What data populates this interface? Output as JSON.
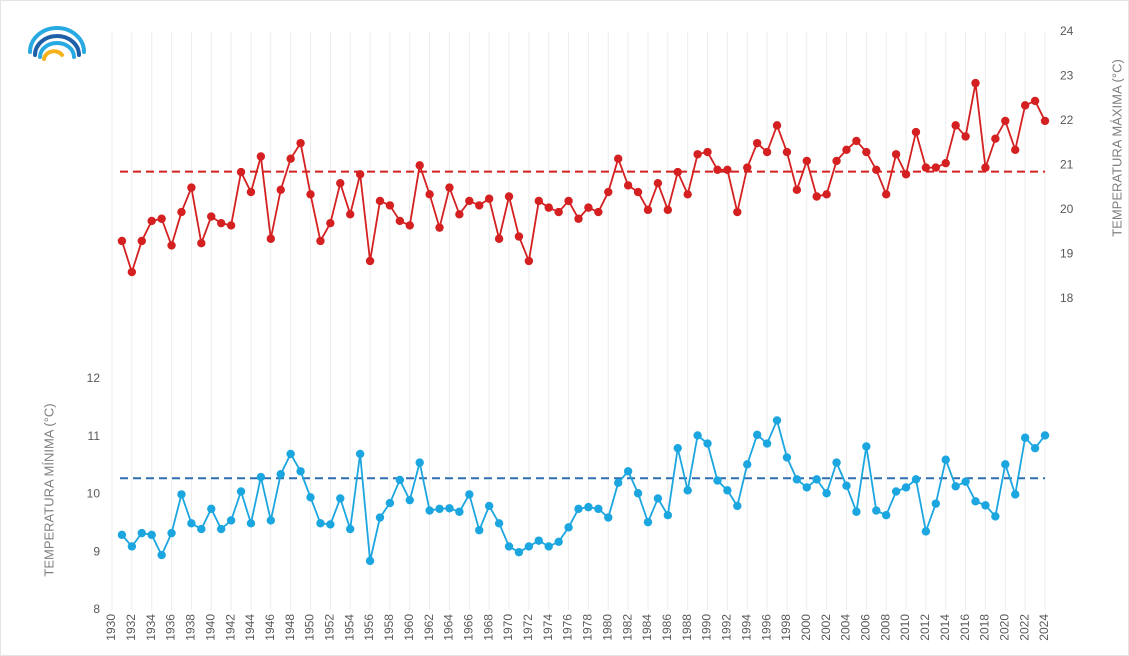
{
  "chart_data": {
    "type": "line",
    "x": [
      1931,
      1932,
      1933,
      1934,
      1935,
      1936,
      1937,
      1938,
      1939,
      1940,
      1941,
      1942,
      1943,
      1944,
      1945,
      1946,
      1947,
      1948,
      1949,
      1950,
      1951,
      1952,
      1953,
      1954,
      1955,
      1956,
      1957,
      1958,
      1959,
      1960,
      1961,
      1962,
      1963,
      1964,
      1965,
      1966,
      1967,
      1968,
      1969,
      1970,
      1971,
      1972,
      1973,
      1974,
      1975,
      1976,
      1977,
      1978,
      1979,
      1980,
      1981,
      1982,
      1983,
      1984,
      1985,
      1986,
      1987,
      1988,
      1989,
      1990,
      1991,
      1992,
      1993,
      1994,
      1995,
      1996,
      1997,
      1998,
      1999,
      2000,
      2001,
      2002,
      2003,
      2004,
      2005,
      2006,
      2007,
      2008,
      2009,
      2010,
      2011,
      2012,
      2013,
      2014,
      2015,
      2016,
      2017,
      2018,
      2019,
      2020,
      2021,
      2022,
      2023,
      2024
    ],
    "series": [
      {
        "color": "#d42020",
        "axis": "y2",
        "values": [
          19.3,
          18.6,
          19.3,
          19.75,
          19.8,
          19.2,
          19.95,
          20.5,
          19.25,
          19.85,
          19.7,
          19.65,
          20.85,
          20.4,
          21.2,
          19.35,
          20.45,
          21.15,
          21.5,
          20.35,
          19.3,
          19.7,
          20.6,
          19.9,
          20.8,
          18.85,
          20.2,
          20.1,
          19.75,
          19.65,
          21.0,
          20.35,
          19.6,
          20.5,
          19.9,
          20.2,
          20.1,
          20.25,
          19.35,
          20.3,
          19.4,
          18.85,
          20.2,
          20.05,
          19.95,
          20.2,
          19.8,
          20.05,
          19.95,
          20.4,
          21.15,
          20.55,
          20.4,
          20.0,
          20.6,
          20.0,
          20.85,
          20.35,
          21.25,
          21.3,
          20.9,
          20.9,
          19.95,
          20.95,
          21.5,
          21.3,
          21.9,
          21.3,
          20.45,
          21.1,
          20.3,
          20.35,
          21.1,
          21.35,
          21.55,
          21.3,
          20.9,
          20.35,
          21.25,
          20.8,
          21.75,
          20.95,
          20.95,
          21.05,
          21.9,
          21.65,
          22.85,
          20.95,
          21.6,
          22.0,
          21.35,
          22.35,
          22.45,
          22.0
        ]
      },
      {
        "color": "#1ca6e0",
        "values": [
          9.3,
          9.1,
          9.33,
          9.3,
          8.95,
          9.33,
          10.0,
          9.5,
          9.4,
          9.75,
          9.4,
          9.55,
          10.05,
          9.5,
          10.3,
          9.55,
          10.35,
          10.7,
          10.4,
          9.95,
          9.5,
          9.48,
          9.93,
          9.4,
          10.7,
          8.85,
          9.6,
          9.85,
          10.25,
          9.9,
          10.55,
          9.72,
          9.75,
          9.76,
          9.7,
          10.0,
          9.38,
          9.8,
          9.5,
          9.1,
          9.0,
          9.1,
          9.2,
          9.1,
          9.18,
          9.43,
          9.75,
          9.78,
          9.75,
          9.6,
          10.2,
          10.4,
          10.02,
          9.52,
          9.93,
          9.64,
          10.8,
          10.07,
          11.02,
          10.88,
          10.24,
          10.07,
          9.8,
          10.52,
          11.03,
          10.88,
          11.28,
          10.64,
          10.26,
          10.12,
          10.26,
          10.02,
          10.55,
          10.15,
          9.7,
          10.83,
          9.72,
          9.64,
          10.05,
          10.12,
          10.26,
          9.36,
          9.84,
          10.6,
          10.14,
          10.22,
          9.88,
          9.81,
          9.62,
          10.52,
          10.0,
          10.98,
          10.8,
          11.02
        ]
      }
    ],
    "mean_lines": [
      {
        "axis": "y2",
        "value": 20.86,
        "color": "#d42020"
      },
      {
        "axis": "y",
        "value": 10.28,
        "color": "#2f6fb0"
      }
    ],
    "xlim": [
      1930,
      2024
    ],
    "xticks": [
      1930,
      1932,
      1934,
      1936,
      1938,
      1940,
      1942,
      1944,
      1946,
      1948,
      1950,
      1952,
      1954,
      1956,
      1958,
      1960,
      1962,
      1964,
      1966,
      1968,
      1970,
      1972,
      1974,
      1976,
      1978,
      1980,
      1982,
      1984,
      1986,
      1988,
      1990,
      1992,
      1994,
      1996,
      1998,
      2000,
      2002,
      2004,
      2006,
      2008,
      2010,
      2012,
      2014,
      2016,
      2018,
      2020,
      2022,
      2024
    ],
    "ylim": [
      8,
      18
    ],
    "yticks": [
      8,
      9,
      10,
      11,
      12
    ],
    "y2lim": [
      11,
      24
    ],
    "y2ticks": [
      18,
      19,
      20,
      21,
      22,
      23,
      24
    ],
    "ylabel": "TEMPERATURA MÍNIMA (°C)",
    "y2label": "TEMPERATURA MÁXIMA (°C)",
    "grid": true
  }
}
